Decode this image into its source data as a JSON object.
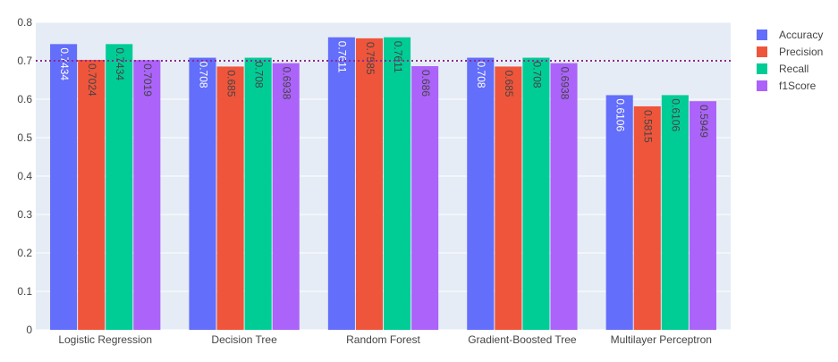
{
  "chart_data": {
    "type": "bar",
    "categories": [
      "Logistic Regression",
      "Decision Tree",
      "Random Forest",
      "Gradient-Boosted Tree",
      "Multilayer Perceptron"
    ],
    "series": [
      {
        "name": "Accuracy",
        "color": "#636efa",
        "values": [
          0.7434,
          0.708,
          0.7611,
          0.708,
          0.6106
        ],
        "labels": [
          "0.7434",
          "0.708",
          "0.7611",
          "0.708",
          "0.6106"
        ],
        "label_color": "#ffffff"
      },
      {
        "name": "Precision",
        "color": "#ef553b",
        "values": [
          0.7024,
          0.685,
          0.7585,
          0.685,
          0.5815
        ],
        "labels": [
          "0.7024",
          "0.685",
          "0.7585",
          "0.685",
          "0.5815"
        ],
        "label_color": "#444444"
      },
      {
        "name": "Recall",
        "color": "#00cc96",
        "values": [
          0.7434,
          0.708,
          0.7611,
          0.708,
          0.6106
        ],
        "labels": [
          "0.7434",
          "0.708",
          "0.7611",
          "0.708",
          "0.6106"
        ],
        "label_color": "#444444"
      },
      {
        "name": "f1Score",
        "color": "#ab63fa",
        "values": [
          0.7019,
          0.6938,
          0.686,
          0.6938,
          0.5949
        ],
        "labels": [
          "0.7019",
          "0.6938",
          "0.686",
          "0.6938",
          "0.5949"
        ],
        "label_color": "#444444"
      }
    ],
    "ylim": [
      0,
      0.8
    ],
    "yticks": [
      0,
      0.1,
      0.2,
      0.3,
      0.4,
      0.5,
      0.6,
      0.7,
      0.8
    ],
    "ytick_labels": [
      "0",
      "0.1",
      "0.2",
      "0.3",
      "0.4",
      "0.5",
      "0.6",
      "0.7",
      "0.8"
    ],
    "reference_line": {
      "y": 0.7,
      "style": "dotted",
      "color": "#8e2a8e"
    },
    "plot_background": "#e5ecf6",
    "grid": true,
    "legend": "top-right",
    "title": "",
    "xlabel": "",
    "ylabel": ""
  }
}
